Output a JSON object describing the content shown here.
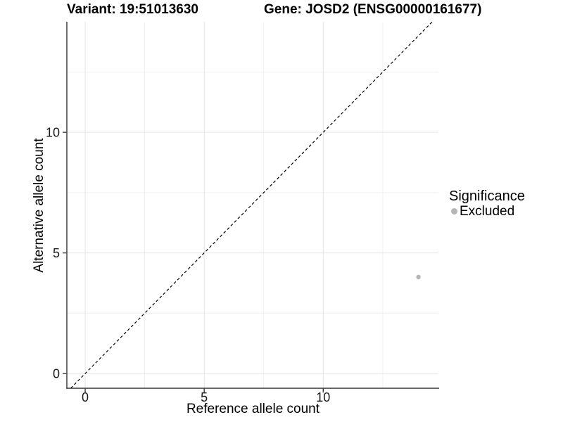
{
  "chart_data": {
    "type": "scatter",
    "titles": {
      "left": "Variant: 19:51013630",
      "right": "Gene: JOSD2 (ENSG00000161677)"
    },
    "xlabel": "Reference allele count",
    "ylabel": "Alternative allele count",
    "xlim": [
      -0.77,
      14.84
    ],
    "ylim": [
      -0.61,
      14.58
    ],
    "x_ticks": [
      0,
      5,
      10
    ],
    "y_ticks": [
      0,
      5,
      10
    ],
    "x_minor_ticks": [
      2.5,
      7.5,
      12.5
    ],
    "y_minor_ticks": [
      2.5,
      7.5,
      12.5
    ],
    "grid": "major+minor",
    "identity_line": {
      "slope": 1,
      "intercept": 0,
      "style": "dashed",
      "color": "#000000"
    },
    "series": [
      {
        "name": "Excluded",
        "color": "#b5b5b5",
        "points": [
          [
            14,
            4
          ]
        ]
      }
    ],
    "legend": {
      "title": "Significance",
      "position": "right",
      "items": [
        {
          "label": "Excluded",
          "color": "#b5b5b5"
        }
      ]
    },
    "colors": {
      "background": "#ffffff",
      "grid_major": "#e5e5e5",
      "grid_minor": "#f0f0f0",
      "axis_line": "#333333",
      "tick_text": "#1a1a1a",
      "point": "#b5b5b5"
    }
  }
}
